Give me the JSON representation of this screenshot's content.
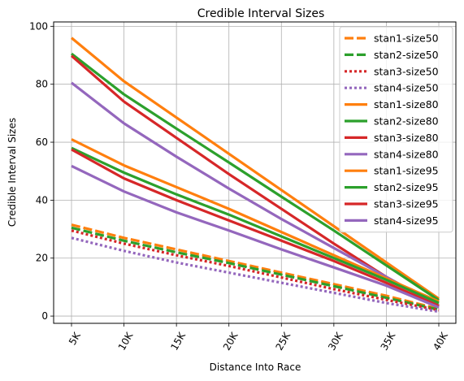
{
  "chart_data": {
    "type": "line",
    "title": "Credible Interval Sizes",
    "xlabel": "Distance Into Race",
    "ylabel": "Credible Interval Sizes",
    "categories": [
      "5K",
      "10K",
      "15K",
      "20K",
      "25K",
      "30K",
      "35K",
      "40K"
    ],
    "yticks": [
      0,
      20,
      40,
      60,
      80,
      100
    ],
    "ylim": [
      -2.5,
      101.5
    ],
    "grid": true,
    "legend_position": "top-right",
    "series": [
      {
        "name": "stan1-size50",
        "style": "dashed",
        "color": "#ff7f0e",
        "values": [
          31.5,
          27.0,
          23.0,
          19.0,
          15.0,
          11.0,
          7.0,
          2.5
        ]
      },
      {
        "name": "stan2-size50",
        "style": "dashed",
        "color": "#2ca02c",
        "values": [
          30.5,
          26.0,
          22.0,
          18.3,
          14.3,
          10.3,
          6.3,
          2.2
        ]
      },
      {
        "name": "stan3-size50",
        "style": "dotted",
        "color": "#d62728",
        "values": [
          29.5,
          25.0,
          21.0,
          17.3,
          13.3,
          9.3,
          5.6,
          2.0
        ]
      },
      {
        "name": "stan4-size50",
        "style": "dotted",
        "color": "#9467bd",
        "values": [
          27.0,
          22.5,
          18.5,
          15.0,
          11.5,
          8.0,
          4.5,
          1.5
        ]
      },
      {
        "name": "stan1-size80",
        "style": "solid",
        "color": "#ff7f0e",
        "values": [
          96.0,
          81.0,
          68.5,
          56.0,
          43.5,
          31.0,
          18.5,
          6.0
        ]
      },
      {
        "name": "stan2-size80",
        "style": "solid",
        "color": "#2ca02c",
        "values": [
          90.5,
          76.5,
          64.7,
          53.0,
          41.2,
          29.5,
          17.5,
          5.5
        ]
      },
      {
        "name": "stan3-size80",
        "style": "solid",
        "color": "#d62728",
        "values": [
          89.8,
          74.0,
          61.5,
          49.0,
          37.0,
          25.0,
          13.5,
          3.5
        ]
      },
      {
        "name": "stan4-size80",
        "style": "solid",
        "color": "#9467bd",
        "values": [
          80.5,
          66.5,
          55.0,
          44.0,
          33.5,
          23.5,
          13.5,
          3.5
        ]
      },
      {
        "name": "stan1-size95",
        "style": "solid",
        "color": "#ff7f0e",
        "values": [
          61.0,
          52.0,
          44.5,
          37.0,
          29.0,
          21.0,
          13.0,
          5.0
        ]
      },
      {
        "name": "stan2-size95",
        "style": "solid",
        "color": "#2ca02c",
        "values": [
          58.0,
          49.5,
          42.0,
          35.0,
          27.5,
          20.0,
          12.5,
          4.5
        ]
      },
      {
        "name": "stan3-size95",
        "style": "solid",
        "color": "#d62728",
        "values": [
          57.5,
          47.5,
          40.0,
          33.0,
          26.0,
          19.0,
          11.5,
          3.5
        ]
      },
      {
        "name": "stan4-size95",
        "style": "solid",
        "color": "#9467bd",
        "values": [
          51.8,
          43.0,
          35.8,
          29.5,
          23.0,
          16.8,
          10.5,
          3.0
        ]
      }
    ]
  }
}
